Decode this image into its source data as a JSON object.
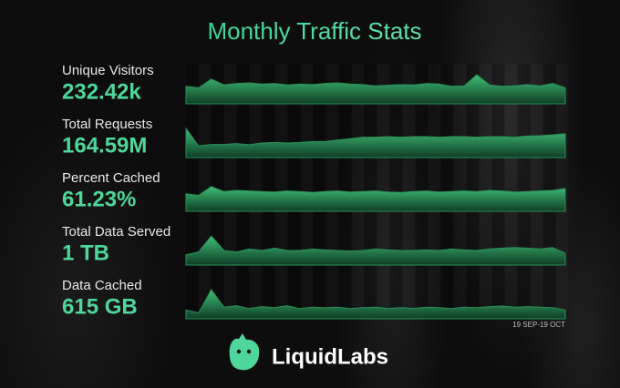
{
  "header": {
    "title": "Monthly Traffic Stats"
  },
  "stats": [
    {
      "label": "Unique Visitors",
      "value": "232.42k",
      "sparkline": [
        60,
        55,
        85,
        65,
        70,
        72,
        68,
        70,
        65,
        68,
        66,
        70,
        72,
        68,
        66,
        62,
        64,
        66,
        65,
        70,
        68,
        60,
        62,
        100,
        65,
        60,
        62,
        66,
        62,
        70,
        55
      ]
    },
    {
      "label": "Total Requests",
      "value": "164.59M",
      "sparkline": [
        100,
        40,
        45,
        45,
        48,
        44,
        50,
        52,
        50,
        52,
        55,
        55,
        60,
        65,
        70,
        70,
        72,
        70,
        72,
        72,
        70,
        72,
        72,
        70,
        72,
        72,
        70,
        74,
        75,
        78,
        82
      ]
    },
    {
      "label": "Percent Cached",
      "value": "61.23%",
      "sparkline": [
        60,
        55,
        85,
        68,
        72,
        70,
        68,
        66,
        70,
        68,
        65,
        68,
        70,
        66,
        68,
        70,
        66,
        65,
        68,
        70,
        66,
        68,
        70,
        68,
        72,
        70,
        66,
        68,
        70,
        72,
        78
      ]
    },
    {
      "label": "Total Data Served",
      "value": "1 TB",
      "sparkline": [
        35,
        45,
        100,
        50,
        45,
        55,
        50,
        58,
        50,
        50,
        55,
        52,
        50,
        48,
        50,
        55,
        52,
        50,
        50,
        52,
        50,
        55,
        52,
        50,
        55,
        58,
        60,
        58,
        55,
        60,
        40
      ]
    },
    {
      "label": "Data Cached",
      "value": "615 GB",
      "sparkline": [
        30,
        20,
        100,
        40,
        45,
        35,
        42,
        38,
        45,
        35,
        40,
        38,
        40,
        35,
        38,
        40,
        35,
        38,
        36,
        40,
        38,
        35,
        40,
        38,
        42,
        44,
        40,
        42,
        40,
        38,
        30
      ]
    }
  ],
  "date_range": "19 SEP-19 OCT",
  "footer": {
    "brand": "LiquidLabs"
  }
}
